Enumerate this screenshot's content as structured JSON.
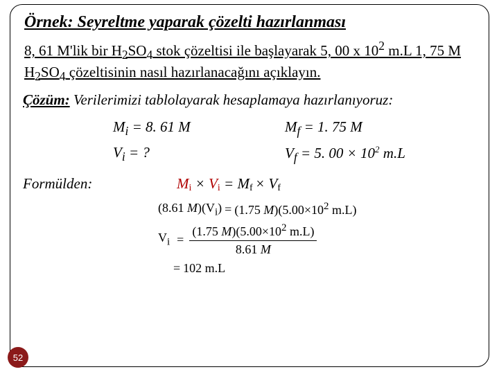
{
  "title": "Örnek: Seyreltme yaparak çözelti hazırlanması",
  "problem_html": "8, 61 M'lik bir H<sub>2</sub>SO<sub>4</sub> stok çözeltisi ile başlayarak 5, 00 x 10<sup>2</sup> m.L 1, 75 M H<sub>2</sub>SO<sub>4</sub> çözeltisinin nasıl hazırlanacağını açıklayın.",
  "solution_label": "Çözüm:",
  "solution_rest": " Verilerimizi tablolayarak hesaplamaya hazırlanıyoruz:",
  "grid": {
    "r1c1": "M<sub>i</sub>  =  8. 61 M",
    "r1c2": "M<sub>f</sub>  = 1. 75 M",
    "r2c1": "V<sub>i</sub>  = ?",
    "r2c2": "V<sub>f</sub>  = 5. 00 × 10<sup style=\"font-size:13px;\">2</sup> m.L"
  },
  "formula_label": "Formülden:",
  "formula_expr": "<span class=\"red\">M<span class=\"sub\">i</span></span> × <span class=\"red\">V<span class=\"sub\">i</span></span>  =  M<span class=\"sub\">f </span>×  V<span class=\"sub\">f</span>",
  "eqn1_left": "(8.61 <i>M</i>)(V<sub>i</sub>)",
  "eqn1_right": "(1.75 <i>M</i>)(5.00×10<sup>2</sup> m.L)",
  "eqn2_num": "(1.75 <i>M</i>)(5.00×10<sup>2</sup> m.L)",
  "eqn2_den": "8.61 <i>M</i>",
  "eqn3_result": "102 m.L",
  "page_number": "52",
  "colors": {
    "accent_red": "#b00000",
    "badge_bg": "#8b1a1a",
    "border": "#000000",
    "background": "#ffffff"
  }
}
